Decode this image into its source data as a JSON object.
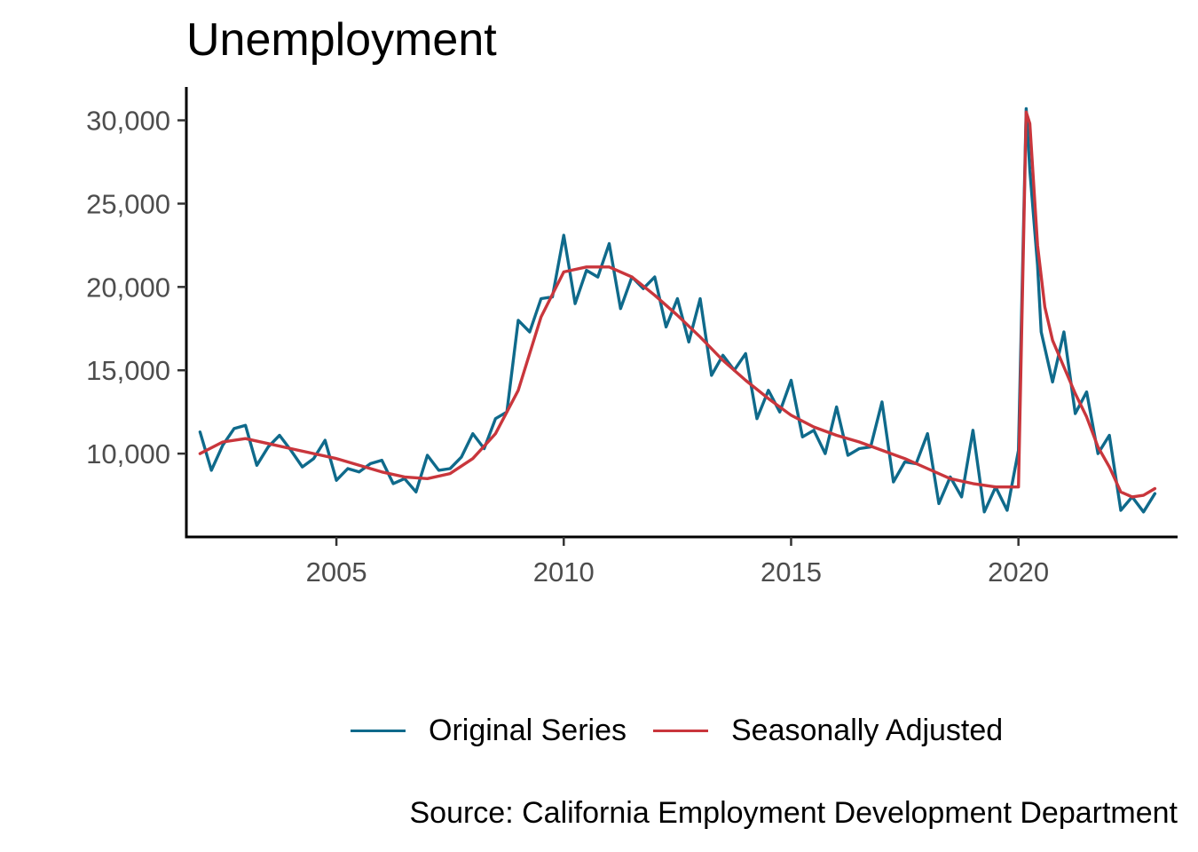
{
  "chart_data": {
    "type": "line",
    "title": "Unemployment",
    "xlabel": "",
    "ylabel": "",
    "xlim": [
      2001.7,
      2023.5
    ],
    "ylim": [
      5000,
      32000
    ],
    "x_ticks": [
      2005,
      2010,
      2015,
      2020
    ],
    "y_ticks": [
      10000,
      15000,
      20000,
      25000,
      30000
    ],
    "y_tick_labels": [
      "10,000",
      "15,000",
      "20,000",
      "25,000",
      "30,000"
    ],
    "grid": false,
    "legend_position": "bottom",
    "source": "Source: California Employment Development Department",
    "series": [
      {
        "name": "Original Series",
        "color": "#0f6a8b",
        "x": [
          2002.0,
          2002.25,
          2002.5,
          2002.75,
          2003.0,
          2003.25,
          2003.5,
          2003.75,
          2004.0,
          2004.25,
          2004.5,
          2004.75,
          2005.0,
          2005.25,
          2005.5,
          2005.75,
          2006.0,
          2006.25,
          2006.5,
          2006.75,
          2007.0,
          2007.25,
          2007.5,
          2007.75,
          2008.0,
          2008.25,
          2008.5,
          2008.75,
          2009.0,
          2009.25,
          2009.5,
          2009.75,
          2010.0,
          2010.25,
          2010.5,
          2010.75,
          2011.0,
          2011.25,
          2011.5,
          2011.75,
          2012.0,
          2012.25,
          2012.5,
          2012.75,
          2013.0,
          2013.25,
          2013.5,
          2013.75,
          2014.0,
          2014.25,
          2014.5,
          2014.75,
          2015.0,
          2015.25,
          2015.5,
          2015.75,
          2016.0,
          2016.25,
          2016.5,
          2016.75,
          2017.0,
          2017.25,
          2017.5,
          2017.75,
          2018.0,
          2018.25,
          2018.5,
          2018.75,
          2019.0,
          2019.25,
          2019.5,
          2019.75,
          2020.0,
          2020.17,
          2020.25,
          2020.42,
          2020.5,
          2020.75,
          2021.0,
          2021.25,
          2021.5,
          2021.75,
          2022.0,
          2022.25,
          2022.5,
          2022.75,
          2023.0
        ],
        "values": [
          11300,
          9000,
          10500,
          11500,
          11700,
          9300,
          10400,
          11100,
          10200,
          9200,
          9700,
          10800,
          8400,
          9100,
          8900,
          9400,
          9600,
          8200,
          8500,
          7700,
          9900,
          9000,
          9100,
          9800,
          11200,
          10300,
          12100,
          12500,
          18000,
          17300,
          19300,
          19400,
          23100,
          19000,
          21000,
          20600,
          22600,
          18700,
          20600,
          19900,
          20600,
          17600,
          19300,
          16700,
          19300,
          14700,
          15900,
          15000,
          16000,
          12100,
          13800,
          12500,
          14400,
          11000,
          11400,
          10000,
          12800,
          9900,
          10300,
          10400,
          13100,
          8300,
          9500,
          9400,
          11200,
          7000,
          8600,
          7400,
          11400,
          6500,
          8000,
          6600,
          10200,
          30700,
          27000,
          21300,
          17300,
          14300,
          17300,
          12400,
          13700,
          10000,
          11100,
          6600,
          7400,
          6500,
          7600
        ]
      },
      {
        "name": "Seasonally Adjusted",
        "color": "#c9363c",
        "x": [
          2002.0,
          2002.5,
          2003.0,
          2003.5,
          2004.0,
          2004.5,
          2005.0,
          2005.5,
          2006.0,
          2006.5,
          2007.0,
          2007.5,
          2008.0,
          2008.5,
          2009.0,
          2009.5,
          2010.0,
          2010.5,
          2011.0,
          2011.5,
          2012.0,
          2012.5,
          2013.0,
          2013.5,
          2014.0,
          2014.5,
          2015.0,
          2015.5,
          2016.0,
          2016.5,
          2017.0,
          2017.5,
          2018.0,
          2018.5,
          2019.0,
          2019.5,
          2020.0,
          2020.17,
          2020.25,
          2020.42,
          2020.58,
          2020.75,
          2021.0,
          2021.25,
          2021.5,
          2021.75,
          2022.0,
          2022.25,
          2022.5,
          2022.75,
          2023.0
        ],
        "values": [
          10000,
          10700,
          10900,
          10600,
          10300,
          10000,
          9700,
          9300,
          8900,
          8600,
          8500,
          8800,
          9700,
          11200,
          13800,
          18200,
          20900,
          21200,
          21200,
          20600,
          19500,
          18300,
          17000,
          15600,
          14400,
          13300,
          12300,
          11600,
          11100,
          10700,
          10200,
          9700,
          9100,
          8500,
          8200,
          8000,
          8000,
          30500,
          29800,
          22500,
          18800,
          16800,
          15200,
          13600,
          12200,
          10400,
          9200,
          7700,
          7400,
          7500,
          7900
        ]
      }
    ]
  }
}
